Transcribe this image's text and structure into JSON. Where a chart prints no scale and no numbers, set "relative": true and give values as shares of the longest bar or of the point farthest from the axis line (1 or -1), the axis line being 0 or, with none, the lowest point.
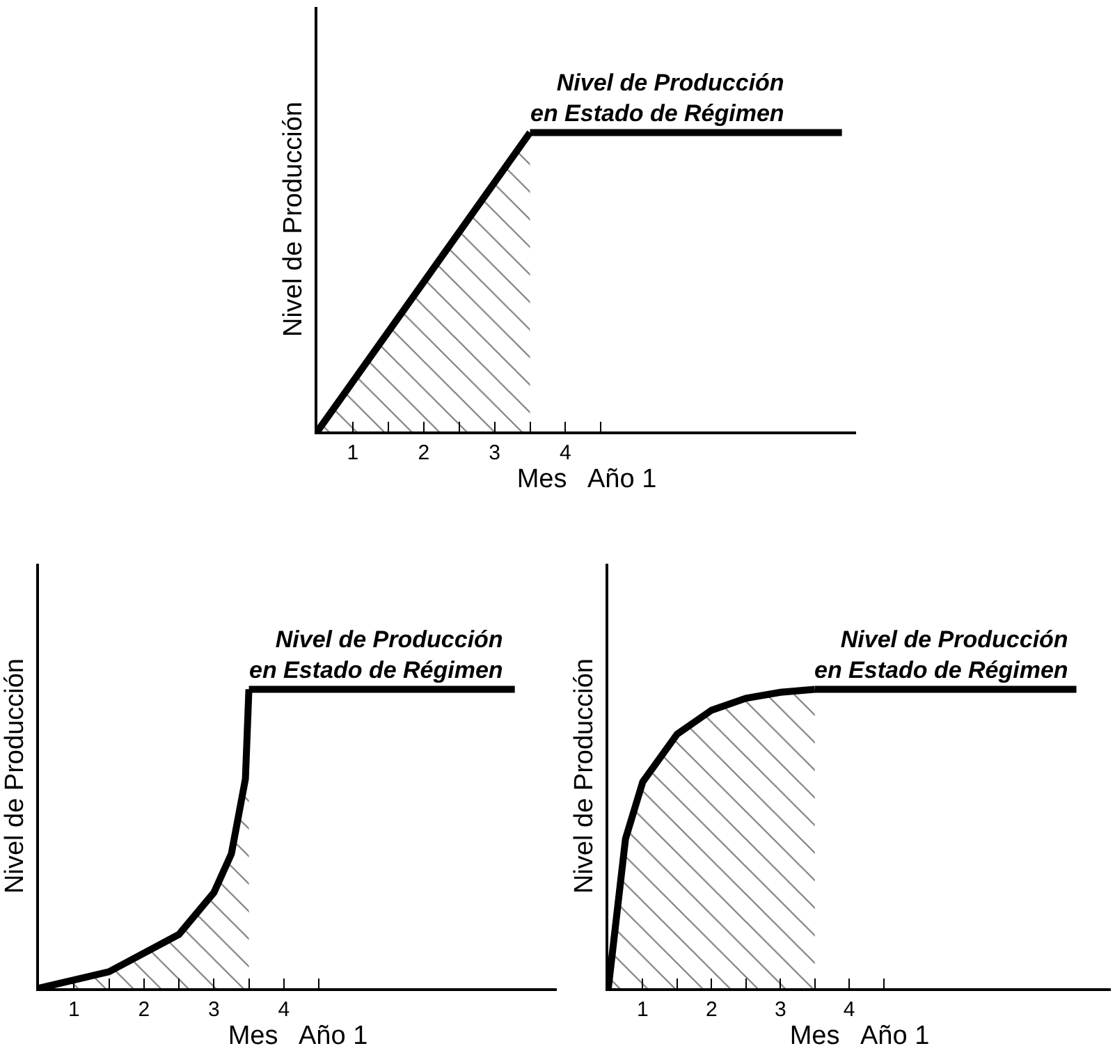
{
  "chart_data": [
    {
      "type": "line",
      "relative": true,
      "xlabel": "Mes   Año 1",
      "ylabel": "Nivel de Producción",
      "xlim": [
        0,
        7.6
      ],
      "xticks": [
        {
          "value": 0.5,
          "label": "1"
        },
        {
          "value": 1,
          "label": null
        },
        {
          "value": 1.5,
          "label": "2"
        },
        {
          "value": 2,
          "label": null
        },
        {
          "value": 2.5,
          "label": "3"
        },
        {
          "value": 3,
          "label": null
        },
        {
          "value": 3.5,
          "label": "4"
        },
        {
          "value": 4,
          "label": null
        }
      ],
      "series": [
        {
          "type": "area",
          "color": "#000000",
          "x": [
            0,
            3
          ],
          "values": [
            0,
            1
          ]
        },
        {
          "color": "#000000",
          "x": [
            3,
            7.4
          ],
          "values": [
            1,
            1
          ]
        }
      ],
      "annotations": [
        "Nivel de Producción\nen Estado de Régimen"
      ],
      "marker": "none",
      "line_style": "solid"
    },
    {
      "type": "line",
      "relative": true,
      "xlabel": "Mes   Año 1",
      "ylabel": "Nivel de Producción",
      "xlim": [
        0,
        7.4
      ],
      "xticks": [
        {
          "value": 0.5,
          "label": "1"
        },
        {
          "value": 1,
          "label": null
        },
        {
          "value": 1.5,
          "label": "2"
        },
        {
          "value": 2,
          "label": null
        },
        {
          "value": 2.5,
          "label": "3"
        },
        {
          "value": 3,
          "label": null
        },
        {
          "value": 3.5,
          "label": "4"
        },
        {
          "value": 4,
          "label": null
        }
      ],
      "series": [
        {
          "type": "area",
          "color": "#000000",
          "x": [
            0,
            1,
            2,
            2.5,
            2.75,
            2.95,
            3
          ],
          "values": [
            0,
            0.055,
            0.18,
            0.32,
            0.45,
            0.7,
            1
          ]
        },
        {
          "color": "#000000",
          "x": [
            3,
            6.8
          ],
          "values": [
            1,
            1
          ]
        }
      ],
      "annotations": [
        "Nivel de Producción\nen Estado de Régimen"
      ],
      "marker": "none",
      "line_style": "solid"
    },
    {
      "type": "line",
      "relative": true,
      "xlabel": "Mes   Año 1",
      "ylabel": "Nivel de Producción",
      "xlim": [
        0,
        7.3
      ],
      "xticks": [
        {
          "value": 0.5,
          "label": "1"
        },
        {
          "value": 1,
          "label": null
        },
        {
          "value": 1.5,
          "label": "2"
        },
        {
          "value": 2,
          "label": null
        },
        {
          "value": 2.5,
          "label": "3"
        },
        {
          "value": 3,
          "label": null
        },
        {
          "value": 3.5,
          "label": "4"
        },
        {
          "value": 4,
          "label": null
        }
      ],
      "series": [
        {
          "type": "area",
          "color": "#000000",
          "x": [
            0,
            0.25,
            0.5,
            1,
            1.5,
            2,
            2.5,
            3
          ],
          "values": [
            0,
            0.5,
            0.69,
            0.85,
            0.93,
            0.97,
            0.99,
            1
          ]
        },
        {
          "color": "#000000",
          "x": [
            3,
            6.8
          ],
          "values": [
            1,
            1
          ]
        }
      ],
      "annotations": [
        "Nivel de Producción\nen Estado de Régimen"
      ],
      "marker": "none",
      "line_style": "solid"
    }
  ]
}
